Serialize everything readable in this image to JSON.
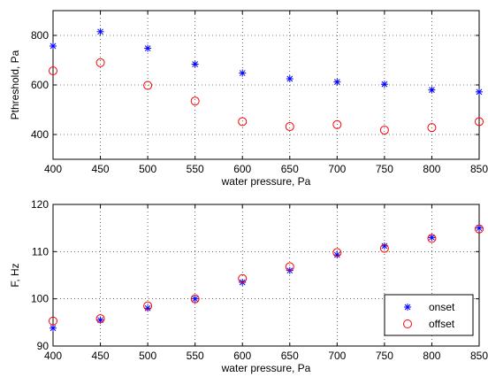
{
  "chart_data": [
    {
      "type": "scatter",
      "xlabel": "water pressure, Pa",
      "ylabel": "Pthreshold, Pa",
      "xlim": [
        400,
        850
      ],
      "ylim": [
        300,
        900
      ],
      "xticks": [
        400,
        450,
        500,
        550,
        600,
        650,
        700,
        750,
        800,
        850
      ],
      "yticks": [
        400,
        600,
        800
      ],
      "grid": true,
      "x": [
        400,
        450,
        500,
        550,
        600,
        650,
        700,
        750,
        800,
        850
      ],
      "series": [
        {
          "marker": "star",
          "color": "#0000ff",
          "values": [
            757,
            815,
            748,
            684,
            648,
            625,
            612,
            603,
            580,
            572
          ]
        },
        {
          "marker": "circle",
          "color": "#ff0000",
          "values": [
            657,
            690,
            598,
            535,
            452,
            432,
            440,
            418,
            428,
            452
          ]
        }
      ]
    },
    {
      "type": "scatter",
      "xlabel": "water pressure, Pa",
      "ylabel": "F, Hz",
      "xlim": [
        400,
        850
      ],
      "ylim": [
        90,
        120
      ],
      "xticks": [
        400,
        450,
        500,
        550,
        600,
        650,
        700,
        750,
        800,
        850
      ],
      "yticks": [
        90,
        100,
        110,
        120
      ],
      "grid": true,
      "legend_position": "bottom-right",
      "x": [
        400,
        450,
        500,
        550,
        600,
        650,
        700,
        750,
        800,
        850
      ],
      "series": [
        {
          "name": "onset",
          "marker": "star",
          "color": "#0000ff",
          "values": [
            93.8,
            95.5,
            98.0,
            100.0,
            103.5,
            106.0,
            109.3,
            111.2,
            113.0,
            115.0
          ]
        },
        {
          "name": "offset",
          "marker": "circle",
          "color": "#ff0000",
          "values": [
            95.3,
            95.8,
            98.5,
            100.0,
            104.3,
            106.8,
            109.8,
            110.7,
            112.8,
            114.8
          ]
        }
      ]
    }
  ]
}
